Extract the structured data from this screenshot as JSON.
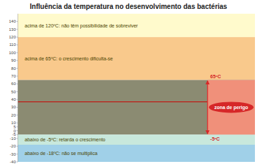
{
  "chart_data": {
    "type": "zones",
    "title": "Influência da temperatura no desenvolvimento das bactérias",
    "ylim": [
      -40,
      150
    ],
    "yticks": [
      140,
      130,
      120,
      110,
      100,
      90,
      80,
      70,
      60,
      50,
      40,
      30,
      20,
      10,
      5,
      0,
      -5,
      -10,
      -20,
      -30,
      -40
    ],
    "zones": [
      {
        "ymin": 120,
        "ymax": 150,
        "color": "#FFFACC",
        "label": "acima de 120ºC: não têm possibilidade de sobreviver"
      },
      {
        "ymin": 65,
        "ymax": 120,
        "color": "#F9C98C",
        "label": "acima de 65ºC: o crescimento dificulta-se"
      },
      {
        "ymin": -5,
        "ymax": 65,
        "color": "#8B8B72"
      },
      {
        "ymin": -18,
        "ymax": -5,
        "color": "#C8E8DC",
        "label": "abaixo de -5ºC: retarda o crescimento"
      },
      {
        "ymin": -40,
        "ymax": -18,
        "color": "#A0D0E8",
        "label": "abaixo de -18ºC: não se multiplica"
      }
    ],
    "danger_zone": {
      "ymin": -5,
      "ymax": 65,
      "color": "#F0907A",
      "label": "zona de perigo",
      "ymin_label": "-5ºC",
      "ymax_label": "65ºC"
    },
    "marker_line": {
      "y": 37,
      "color": "#CC0000"
    }
  }
}
